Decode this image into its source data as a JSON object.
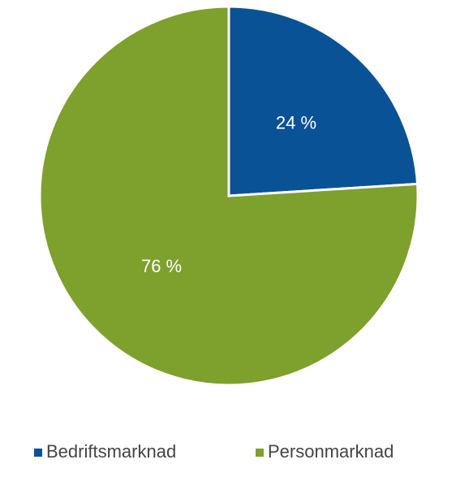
{
  "chart_data": {
    "type": "pie",
    "categories": [
      "Bedriftsmarknad",
      "Personmarknad"
    ],
    "values": [
      24,
      76
    ],
    "value_labels": [
      "24 %",
      "76 %"
    ],
    "colors": [
      "#0a5296",
      "#7ea02d"
    ],
    "legend": "bottom"
  }
}
